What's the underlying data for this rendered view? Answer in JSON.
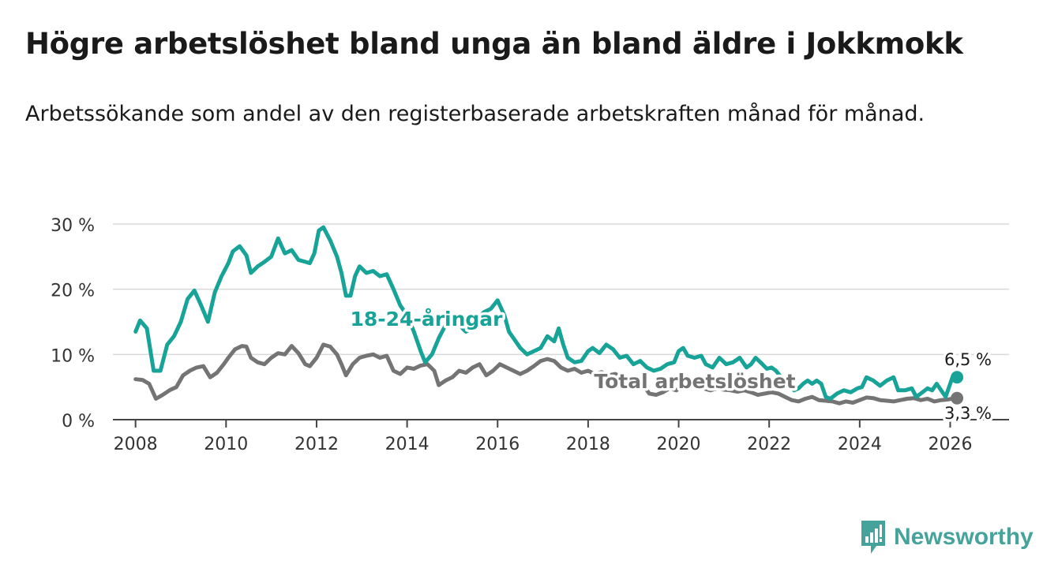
{
  "header": {
    "title": "Högre arbetslöshet bland unga än bland äldre i Jokkmokk",
    "subtitle": "Arbetssökande som andel av den registerbaserade arbetskraften månad för månad."
  },
  "brand": {
    "name": "Newsworthy",
    "color": "#45a39c"
  },
  "colors": {
    "youth": "#17a398",
    "total": "#747474",
    "grid": "#d9d9d9",
    "axis": "#444444"
  },
  "chart_data": {
    "type": "line",
    "title": "Högre arbetslöshet bland unga än bland äldre i Jokkmokk",
    "subtitle": "Arbetssökande som andel av den registerbaserade arbetskraften månad för månad.",
    "xlabel": "",
    "ylabel": "",
    "xlim": [
      2007.5,
      2027.3
    ],
    "ylim": [
      0,
      30
    ],
    "x_ticks": [
      2008,
      2010,
      2012,
      2014,
      2016,
      2018,
      2020,
      2022,
      2024,
      2026
    ],
    "x_tick_labels": [
      "2008",
      "2010",
      "2012",
      "2014",
      "2016",
      "2018",
      "2020",
      "2022",
      "2024",
      "2026"
    ],
    "y_ticks": [
      0,
      10,
      20,
      30
    ],
    "y_tick_labels": [
      "0 %",
      "10 %",
      "20 %",
      "30 %"
    ],
    "grid": true,
    "series": [
      {
        "name": "18-24-åringar",
        "label": "18-24-åringar",
        "end_label": "6,5 %",
        "color": "#17a398",
        "points": [
          [
            2008.0,
            13.5
          ],
          [
            2008.1,
            15.2
          ],
          [
            2008.25,
            14.0
          ],
          [
            2008.4,
            7.5
          ],
          [
            2008.55,
            7.5
          ],
          [
            2008.7,
            11.5
          ],
          [
            2008.85,
            12.8
          ],
          [
            2009.0,
            15.0
          ],
          [
            2009.15,
            18.5
          ],
          [
            2009.3,
            19.8
          ],
          [
            2009.45,
            17.5
          ],
          [
            2009.6,
            15.0
          ],
          [
            2009.75,
            19.5
          ],
          [
            2009.9,
            22.0
          ],
          [
            2010.05,
            24.0
          ],
          [
            2010.15,
            25.8
          ],
          [
            2010.3,
            26.6
          ],
          [
            2010.45,
            25.2
          ],
          [
            2010.55,
            22.5
          ],
          [
            2010.7,
            23.5
          ],
          [
            2010.85,
            24.2
          ],
          [
            2011.0,
            25.0
          ],
          [
            2011.15,
            27.8
          ],
          [
            2011.3,
            25.5
          ],
          [
            2011.45,
            26.0
          ],
          [
            2011.6,
            24.5
          ],
          [
            2011.75,
            24.2
          ],
          [
            2011.85,
            24.0
          ],
          [
            2011.95,
            25.5
          ],
          [
            2012.05,
            29.0
          ],
          [
            2012.15,
            29.5
          ],
          [
            2012.3,
            27.5
          ],
          [
            2012.45,
            25.0
          ],
          [
            2012.55,
            22.5
          ],
          [
            2012.65,
            19.0
          ],
          [
            2012.75,
            19.0
          ],
          [
            2012.85,
            22.0
          ],
          [
            2012.95,
            23.5
          ],
          [
            2013.1,
            22.5
          ],
          [
            2013.25,
            22.8
          ],
          [
            2013.4,
            22.0
          ],
          [
            2013.55,
            22.3
          ],
          [
            2013.7,
            20.0
          ],
          [
            2013.85,
            17.5
          ],
          [
            2014.0,
            16.0
          ],
          [
            2014.15,
            13.5
          ],
          [
            2014.3,
            10.5
          ],
          [
            2014.4,
            8.8
          ],
          [
            2014.55,
            10.0
          ],
          [
            2014.7,
            12.5
          ],
          [
            2014.85,
            14.5
          ],
          [
            2015.0,
            15.0
          ],
          [
            2015.15,
            14.5
          ],
          [
            2015.3,
            13.5
          ],
          [
            2015.45,
            14.0
          ],
          [
            2015.55,
            15.5
          ],
          [
            2015.7,
            16.5
          ],
          [
            2015.85,
            17.0
          ],
          [
            2016.0,
            18.3
          ],
          [
            2016.15,
            16.0
          ],
          [
            2016.25,
            13.5
          ],
          [
            2016.4,
            12.0
          ],
          [
            2016.5,
            11.0
          ],
          [
            2016.65,
            10.0
          ],
          [
            2016.8,
            10.5
          ],
          [
            2016.95,
            11.0
          ],
          [
            2017.1,
            12.8
          ],
          [
            2017.25,
            12.0
          ],
          [
            2017.35,
            14.0
          ],
          [
            2017.45,
            11.5
          ],
          [
            2017.55,
            9.5
          ],
          [
            2017.7,
            8.8
          ],
          [
            2017.85,
            9.0
          ],
          [
            2018.0,
            10.5
          ],
          [
            2018.1,
            11.0
          ],
          [
            2018.25,
            10.2
          ],
          [
            2018.4,
            11.5
          ],
          [
            2018.55,
            10.8
          ],
          [
            2018.7,
            9.5
          ],
          [
            2018.85,
            9.8
          ],
          [
            2019.0,
            8.5
          ],
          [
            2019.15,
            9.0
          ],
          [
            2019.3,
            8.0
          ],
          [
            2019.45,
            7.5
          ],
          [
            2019.6,
            7.8
          ],
          [
            2019.75,
            8.5
          ],
          [
            2019.9,
            8.8
          ],
          [
            2020.0,
            10.5
          ],
          [
            2020.1,
            11.0
          ],
          [
            2020.2,
            9.8
          ],
          [
            2020.35,
            9.5
          ],
          [
            2020.5,
            9.8
          ],
          [
            2020.6,
            8.5
          ],
          [
            2020.75,
            8.0
          ],
          [
            2020.9,
            9.5
          ],
          [
            2021.05,
            8.5
          ],
          [
            2021.2,
            8.8
          ],
          [
            2021.35,
            9.5
          ],
          [
            2021.5,
            8.0
          ],
          [
            2021.6,
            8.5
          ],
          [
            2021.7,
            9.5
          ],
          [
            2021.85,
            8.5
          ],
          [
            2021.95,
            7.8
          ],
          [
            2022.05,
            8.0
          ],
          [
            2022.15,
            7.5
          ],
          [
            2022.3,
            6.2
          ],
          [
            2022.45,
            5.5
          ],
          [
            2022.55,
            4.5
          ],
          [
            2022.65,
            4.8
          ],
          [
            2022.75,
            5.5
          ],
          [
            2022.85,
            6.0
          ],
          [
            2022.95,
            5.5
          ],
          [
            2023.05,
            6.0
          ],
          [
            2023.15,
            5.5
          ],
          [
            2023.25,
            3.5
          ],
          [
            2023.35,
            3.2
          ],
          [
            2023.5,
            4.0
          ],
          [
            2023.65,
            4.5
          ],
          [
            2023.8,
            4.2
          ],
          [
            2023.95,
            4.8
          ],
          [
            2024.05,
            5.0
          ],
          [
            2024.15,
            6.5
          ],
          [
            2024.3,
            6.0
          ],
          [
            2024.45,
            5.2
          ],
          [
            2024.6,
            6.0
          ],
          [
            2024.75,
            6.5
          ],
          [
            2024.85,
            4.5
          ],
          [
            2025.0,
            4.5
          ],
          [
            2025.15,
            4.8
          ],
          [
            2025.25,
            3.5
          ],
          [
            2025.35,
            4.0
          ],
          [
            2025.5,
            4.8
          ],
          [
            2025.6,
            4.5
          ],
          [
            2025.7,
            5.5
          ],
          [
            2025.8,
            4.5
          ],
          [
            2025.9,
            3.5
          ],
          [
            2026.05,
            6.5
          ],
          [
            2026.15,
            6.5
          ]
        ]
      },
      {
        "name": "Total arbetslöshet",
        "label": "Total arbetslöshet",
        "end_label": "3,3 %",
        "color": "#747474",
        "points": [
          [
            2008.0,
            6.2
          ],
          [
            2008.15,
            6.1
          ],
          [
            2008.3,
            5.5
          ],
          [
            2008.45,
            3.2
          ],
          [
            2008.6,
            3.8
          ],
          [
            2008.75,
            4.5
          ],
          [
            2008.9,
            5.0
          ],
          [
            2009.05,
            6.8
          ],
          [
            2009.2,
            7.5
          ],
          [
            2009.35,
            8.0
          ],
          [
            2009.5,
            8.2
          ],
          [
            2009.65,
            6.5
          ],
          [
            2009.8,
            7.2
          ],
          [
            2009.95,
            8.5
          ],
          [
            2010.05,
            9.5
          ],
          [
            2010.2,
            10.8
          ],
          [
            2010.35,
            11.3
          ],
          [
            2010.45,
            11.2
          ],
          [
            2010.55,
            9.5
          ],
          [
            2010.7,
            8.8
          ],
          [
            2010.85,
            8.5
          ],
          [
            2011.0,
            9.5
          ],
          [
            2011.15,
            10.2
          ],
          [
            2011.3,
            10.0
          ],
          [
            2011.45,
            11.3
          ],
          [
            2011.6,
            10.2
          ],
          [
            2011.75,
            8.5
          ],
          [
            2011.85,
            8.2
          ],
          [
            2012.0,
            9.5
          ],
          [
            2012.15,
            11.5
          ],
          [
            2012.3,
            11.2
          ],
          [
            2012.45,
            10.0
          ],
          [
            2012.55,
            8.5
          ],
          [
            2012.65,
            6.8
          ],
          [
            2012.8,
            8.5
          ],
          [
            2012.95,
            9.5
          ],
          [
            2013.1,
            9.8
          ],
          [
            2013.25,
            10.0
          ],
          [
            2013.4,
            9.5
          ],
          [
            2013.55,
            9.8
          ],
          [
            2013.7,
            7.5
          ],
          [
            2013.85,
            7.0
          ],
          [
            2014.0,
            8.0
          ],
          [
            2014.15,
            7.8
          ],
          [
            2014.3,
            8.3
          ],
          [
            2014.45,
            8.5
          ],
          [
            2014.6,
            7.5
          ],
          [
            2014.7,
            5.3
          ],
          [
            2014.85,
            6.0
          ],
          [
            2015.0,
            6.5
          ],
          [
            2015.15,
            7.5
          ],
          [
            2015.3,
            7.2
          ],
          [
            2015.45,
            8.0
          ],
          [
            2015.6,
            8.5
          ],
          [
            2015.75,
            6.8
          ],
          [
            2015.9,
            7.5
          ],
          [
            2016.05,
            8.5
          ],
          [
            2016.2,
            8.0
          ],
          [
            2016.35,
            7.5
          ],
          [
            2016.5,
            7.0
          ],
          [
            2016.65,
            7.5
          ],
          [
            2016.8,
            8.2
          ],
          [
            2016.95,
            9.0
          ],
          [
            2017.1,
            9.3
          ],
          [
            2017.25,
            9.0
          ],
          [
            2017.4,
            8.0
          ],
          [
            2017.55,
            7.5
          ],
          [
            2017.7,
            7.8
          ],
          [
            2017.85,
            7.2
          ],
          [
            2018.0,
            7.5
          ],
          [
            2018.15,
            7.0
          ],
          [
            2018.3,
            7.3
          ],
          [
            2018.45,
            6.8
          ],
          [
            2018.6,
            7.0
          ],
          [
            2018.75,
            6.5
          ],
          [
            2018.9,
            6.2
          ],
          [
            2019.05,
            5.8
          ],
          [
            2019.2,
            5.5
          ],
          [
            2019.35,
            4.0
          ],
          [
            2019.5,
            3.8
          ],
          [
            2019.65,
            4.2
          ],
          [
            2019.8,
            4.8
          ],
          [
            2019.95,
            4.5
          ],
          [
            2020.1,
            5.5
          ],
          [
            2020.25,
            5.3
          ],
          [
            2020.4,
            5.0
          ],
          [
            2020.55,
            4.8
          ],
          [
            2020.7,
            4.5
          ],
          [
            2020.85,
            4.8
          ],
          [
            2021.0,
            4.6
          ],
          [
            2021.15,
            4.5
          ],
          [
            2021.3,
            4.3
          ],
          [
            2021.45,
            4.5
          ],
          [
            2021.6,
            4.2
          ],
          [
            2021.75,
            3.8
          ],
          [
            2021.9,
            4.0
          ],
          [
            2022.05,
            4.2
          ],
          [
            2022.2,
            4.0
          ],
          [
            2022.35,
            3.5
          ],
          [
            2022.5,
            3.0
          ],
          [
            2022.65,
            2.8
          ],
          [
            2022.8,
            3.2
          ],
          [
            2022.95,
            3.5
          ],
          [
            2023.1,
            3.0
          ],
          [
            2023.25,
            2.9
          ],
          [
            2023.4,
            2.8
          ],
          [
            2023.55,
            2.5
          ],
          [
            2023.7,
            2.8
          ],
          [
            2023.85,
            2.6
          ],
          [
            2024.0,
            3.0
          ],
          [
            2024.15,
            3.4
          ],
          [
            2024.3,
            3.3
          ],
          [
            2024.45,
            3.0
          ],
          [
            2024.6,
            2.9
          ],
          [
            2024.75,
            2.8
          ],
          [
            2024.9,
            3.0
          ],
          [
            2025.05,
            3.2
          ],
          [
            2025.2,
            3.3
          ],
          [
            2025.35,
            3.0
          ],
          [
            2025.5,
            3.2
          ],
          [
            2025.65,
            2.8
          ],
          [
            2025.8,
            3.0
          ],
          [
            2025.95,
            3.1
          ],
          [
            2026.1,
            3.3
          ],
          [
            2026.15,
            3.3
          ]
        ]
      }
    ]
  }
}
